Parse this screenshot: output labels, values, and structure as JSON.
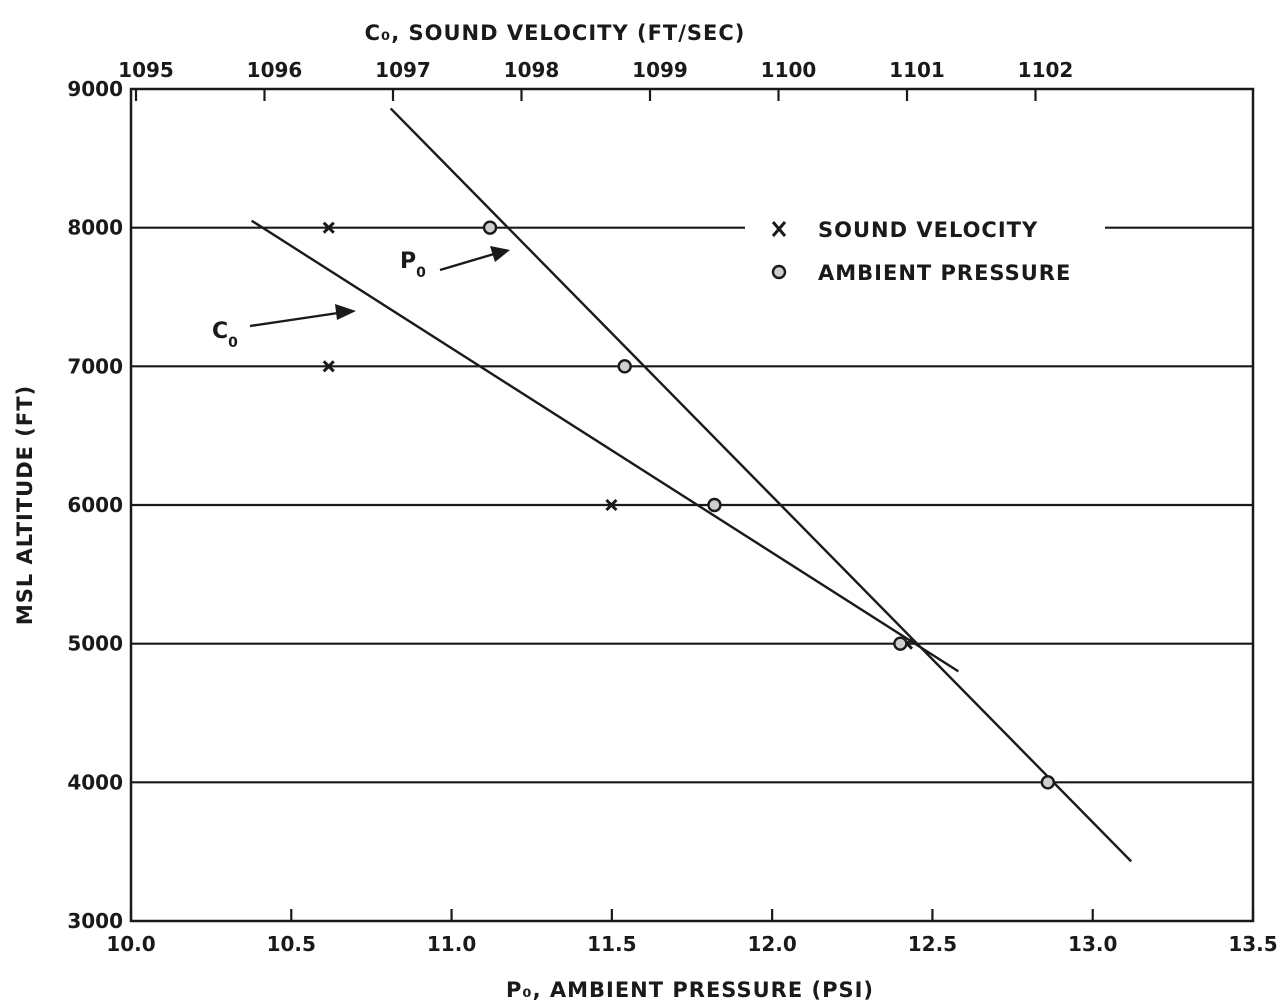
{
  "chart_data": {
    "type": "line",
    "top_axis_title": "C₀, SOUND VELOCITY (FT/SEC)",
    "bottom_axis_title": "P₀, AMBIENT PRESSURE (PSI)",
    "y_axis_title": "MSL ALTITUDE (FT)",
    "x_ticks": [
      "10.0",
      "10.5",
      "11.0",
      "11.5",
      "12.0",
      "12.5",
      "13.0",
      "13.5"
    ],
    "x_tick_values": [
      10.0,
      10.5,
      11.0,
      11.5,
      12.0,
      12.5,
      13.0,
      13.5
    ],
    "xlim": [
      10.0,
      13.5
    ],
    "top_ticks": [
      "1095",
      "1096",
      "1097",
      "1098",
      "1099",
      "1100",
      "1101",
      "1102"
    ],
    "top_tick_values": [
      1095,
      1096,
      1097,
      1098,
      1099,
      1100,
      1101,
      1102
    ],
    "y_ticks": [
      "3000",
      "4000",
      "5000",
      "6000",
      "7000",
      "8000",
      "9000"
    ],
    "y_tick_values": [
      3000,
      4000,
      5000,
      6000,
      7000,
      8000,
      9000
    ],
    "ylim": [
      3000,
      9000
    ],
    "legend": [
      {
        "marker": "X",
        "label": "SOUND VELOCITY"
      },
      {
        "marker": "circle",
        "label": "AMBIENT PRESSURE"
      }
    ],
    "legend_position": "upper-right",
    "annotations": {
      "c0": "C",
      "c0_sub": "0",
      "p0": "P",
      "p0_sub": "0"
    },
    "series": [
      {
        "name": "SOUND VELOCITY",
        "axis": "top",
        "marker": "x",
        "points": [
          {
            "x": 1096.5,
            "y": 8000
          },
          {
            "x": 1096.5,
            "y": 7000
          },
          {
            "x": 1098.7,
            "y": 6000
          },
          {
            "x": 1101.0,
            "y": 5000
          }
        ],
        "fit": [
          {
            "x": 1095.9,
            "y": 8050
          },
          {
            "x": 1101.4,
            "y": 4800
          }
        ]
      },
      {
        "name": "AMBIENT PRESSURE",
        "axis": "bottom",
        "marker": "circle",
        "points": [
          {
            "x": 11.12,
            "y": 8000
          },
          {
            "x": 11.54,
            "y": 7000
          },
          {
            "x": 11.82,
            "y": 6000
          },
          {
            "x": 12.4,
            "y": 5000
          },
          {
            "x": 12.86,
            "y": 4000
          }
        ],
        "fit": [
          {
            "x": 10.81,
            "y": 8860
          },
          {
            "x": 13.12,
            "y": 3430
          }
        ]
      }
    ],
    "grid": "horizontal"
  }
}
